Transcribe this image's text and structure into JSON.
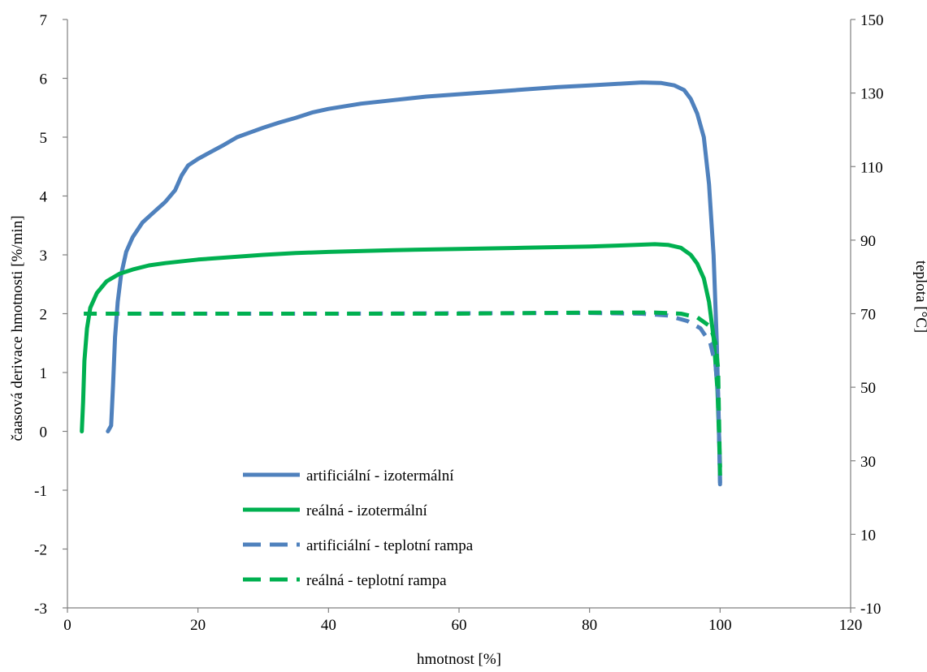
{
  "chart_data": {
    "type": "line",
    "xlabel": "hmotnost [%]",
    "ylabel": "čaasová derivace hmotnosti [%/min]",
    "y2label": "teplota [°C]",
    "xlim": [
      0,
      120
    ],
    "ylim": [
      -3,
      7
    ],
    "y2lim": [
      -10,
      150
    ],
    "x_ticks": [
      "0",
      "20",
      "40",
      "60",
      "80",
      "100",
      "120"
    ],
    "y_ticks": [
      "-3",
      "-2",
      "-1",
      "0",
      "1",
      "2",
      "3",
      "4",
      "5",
      "6",
      "7"
    ],
    "y2_ticks": [
      "-10",
      "10",
      "30",
      "50",
      "70",
      "90",
      "110",
      "130",
      "150"
    ],
    "grid": false,
    "legend_position": "bottom-left",
    "colors": {
      "blue": "#4f81bd",
      "green": "#00b050",
      "axis": "#808080"
    },
    "series": [
      {
        "name": "artificiální - izotermální",
        "color": "#4f81bd",
        "style": "solid",
        "axis": "left",
        "points": [
          [
            6.2,
            0.0
          ],
          [
            6.7,
            0.1
          ],
          [
            7.0,
            0.8
          ],
          [
            7.3,
            1.6
          ],
          [
            7.7,
            2.2
          ],
          [
            8.2,
            2.65
          ],
          [
            9.0,
            3.05
          ],
          [
            10.0,
            3.3
          ],
          [
            11.5,
            3.55
          ],
          [
            13.0,
            3.7
          ],
          [
            15.0,
            3.9
          ],
          [
            16.5,
            4.1
          ],
          [
            17.5,
            4.35
          ],
          [
            18.5,
            4.52
          ],
          [
            20.0,
            4.63
          ],
          [
            22.0,
            4.75
          ],
          [
            24.0,
            4.87
          ],
          [
            26.0,
            5.0
          ],
          [
            28.0,
            5.08
          ],
          [
            30.0,
            5.16
          ],
          [
            32.5,
            5.25
          ],
          [
            35.0,
            5.33
          ],
          [
            37.5,
            5.42
          ],
          [
            40.0,
            5.48
          ],
          [
            45.0,
            5.57
          ],
          [
            50.0,
            5.63
          ],
          [
            55.0,
            5.69
          ],
          [
            60.0,
            5.73
          ],
          [
            65.0,
            5.77
          ],
          [
            70.0,
            5.81
          ],
          [
            75.0,
            5.85
          ],
          [
            80.0,
            5.88
          ],
          [
            85.0,
            5.91
          ],
          [
            88.0,
            5.93
          ],
          [
            91.0,
            5.92
          ],
          [
            93.0,
            5.88
          ],
          [
            94.5,
            5.8
          ],
          [
            95.5,
            5.65
          ],
          [
            96.5,
            5.4
          ],
          [
            97.5,
            5.0
          ],
          [
            98.3,
            4.2
          ],
          [
            99.0,
            3.0
          ],
          [
            99.5,
            1.5
          ],
          [
            99.8,
            0.2
          ],
          [
            100.0,
            -0.9
          ]
        ]
      },
      {
        "name": "reálná - izotermální",
        "color": "#00b050",
        "style": "solid",
        "axis": "left",
        "points": [
          [
            2.2,
            0.0
          ],
          [
            2.4,
            0.5
          ],
          [
            2.6,
            1.2
          ],
          [
            3.0,
            1.75
          ],
          [
            3.5,
            2.1
          ],
          [
            4.5,
            2.35
          ],
          [
            6.0,
            2.55
          ],
          [
            8.0,
            2.68
          ],
          [
            10.0,
            2.75
          ],
          [
            12.5,
            2.82
          ],
          [
            15.0,
            2.86
          ],
          [
            20.0,
            2.92
          ],
          [
            25.0,
            2.96
          ],
          [
            30.0,
            3.0
          ],
          [
            35.0,
            3.03
          ],
          [
            40.0,
            3.05
          ],
          [
            50.0,
            3.08
          ],
          [
            60.0,
            3.1
          ],
          [
            70.0,
            3.12
          ],
          [
            80.0,
            3.14
          ],
          [
            85.0,
            3.16
          ],
          [
            90.0,
            3.18
          ],
          [
            92.0,
            3.17
          ],
          [
            94.0,
            3.12
          ],
          [
            95.5,
            3.0
          ],
          [
            96.5,
            2.85
          ],
          [
            97.5,
            2.6
          ],
          [
            98.3,
            2.2
          ],
          [
            99.0,
            1.6
          ],
          [
            99.6,
            0.7
          ],
          [
            100.0,
            -0.6
          ]
        ]
      },
      {
        "name": "artificiální - teplotní rampa",
        "color": "#4f81bd",
        "style": "dashed",
        "axis": "right",
        "points": [
          [
            6.0,
            70.0
          ],
          [
            20.0,
            70.0
          ],
          [
            40.0,
            70.0
          ],
          [
            60.0,
            70.1
          ],
          [
            80.0,
            70.2
          ],
          [
            88.0,
            70.0
          ],
          [
            92.0,
            69.5
          ],
          [
            95.0,
            68.0
          ],
          [
            97.0,
            66.0
          ],
          [
            98.5,
            62.0
          ],
          [
            99.3,
            56.0
          ],
          [
            99.7,
            48.0
          ],
          [
            100.0,
            24.0
          ]
        ]
      },
      {
        "name": "reálná - teplotní rampa",
        "color": "#00b050",
        "style": "dashed",
        "axis": "right",
        "points": [
          [
            2.5,
            70.0
          ],
          [
            20.0,
            70.0
          ],
          [
            40.0,
            70.0
          ],
          [
            60.0,
            70.0
          ],
          [
            80.0,
            70.3
          ],
          [
            90.0,
            70.3
          ],
          [
            94.0,
            70.0
          ],
          [
            96.5,
            69.0
          ],
          [
            98.5,
            66.5
          ],
          [
            99.3,
            62.0
          ],
          [
            99.7,
            55.0
          ],
          [
            100.0,
            26.0
          ]
        ]
      }
    ]
  }
}
